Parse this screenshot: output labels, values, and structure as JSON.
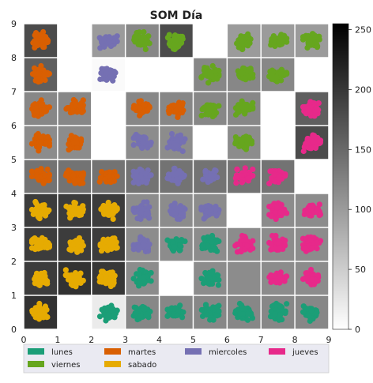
{
  "chart_data": {
    "type": "heatmap",
    "title": "SOM Día",
    "xlim": [
      0,
      9
    ],
    "ylim": [
      0,
      9
    ],
    "x_ticks": [
      "0",
      "1",
      "2",
      "3",
      "4",
      "5",
      "6",
      "7",
      "8",
      "9"
    ],
    "y_ticks": [
      "0",
      "1",
      "2",
      "3",
      "4",
      "5",
      "6",
      "7",
      "8",
      "9"
    ],
    "grid": true,
    "colorbar": {
      "range": [
        0,
        255
      ],
      "ticks": [
        "0",
        "50",
        "100",
        "150",
        "200",
        "250"
      ],
      "colormap": "gray_r"
    },
    "cell_values": [
      [
        205,
        null,
        20,
        120,
        120,
        120,
        120,
        120,
        120
      ],
      [
        195,
        205,
        200,
        115,
        null,
        115,
        115,
        115,
        115
      ],
      [
        195,
        195,
        195,
        115,
        115,
        115,
        115,
        115,
        115
      ],
      [
        195,
        195,
        195,
        115,
        115,
        115,
        null,
        115,
        115
      ],
      [
        140,
        140,
        140,
        140,
        140,
        140,
        140,
        140,
        null
      ],
      [
        115,
        115,
        null,
        115,
        115,
        null,
        115,
        null,
        180
      ],
      [
        120,
        120,
        null,
        120,
        120,
        120,
        120,
        null,
        160
      ],
      [
        160,
        null,
        5,
        null,
        null,
        120,
        120,
        120,
        null
      ],
      [
        180,
        null,
        100,
        120,
        180,
        null,
        100,
        100,
        100
      ]
    ],
    "cluster_colors": [
      [
        "sabado",
        null,
        "lunes",
        "lunes",
        "lunes",
        "lunes",
        "lunes",
        "lunes",
        "lunes"
      ],
      [
        "sabado",
        "sabado",
        "sabado",
        "lunes",
        null,
        "lunes",
        null,
        "jueves",
        "jueves"
      ],
      [
        "sabado",
        "sabado",
        "sabado",
        "miercoles",
        "lunes",
        "lunes",
        "jueves",
        "jueves",
        "jueves"
      ],
      [
        "sabado",
        "sabado",
        "sabado",
        "miercoles",
        "miercoles",
        "miercoles",
        null,
        "jueves",
        "jueves"
      ],
      [
        "martes",
        "martes",
        "martes",
        "miercoles",
        "miercoles",
        "miercoles",
        "jueves",
        "jueves",
        null
      ],
      [
        "martes",
        "martes",
        null,
        "miercoles",
        "miercoles",
        null,
        "viernes",
        null,
        "jueves"
      ],
      [
        "martes",
        "martes",
        null,
        "martes",
        "martes",
        "viernes",
        "viernes",
        null,
        "jueves"
      ],
      [
        "martes",
        null,
        "miercoles",
        null,
        null,
        "viernes",
        "viernes",
        "viernes",
        null
      ],
      [
        "martes",
        null,
        "miercoles",
        "viernes",
        "viernes",
        null,
        "viernes",
        "viernes",
        "viernes"
      ]
    ],
    "legend": {
      "position": "bottom",
      "entries": [
        {
          "key": "lunes",
          "label": "lunes",
          "color": "#1b9e77"
        },
        {
          "key": "martes",
          "label": "martes",
          "color": "#d95f02"
        },
        {
          "key": "miercoles",
          "label": "miercoles",
          "color": "#7570b3"
        },
        {
          "key": "jueves",
          "label": "jueves",
          "color": "#e7298a"
        },
        {
          "key": "viernes",
          "label": "viernes",
          "color": "#66a61e"
        },
        {
          "key": "sabado",
          "label": "sabado",
          "color": "#e6ab02"
        }
      ]
    }
  }
}
